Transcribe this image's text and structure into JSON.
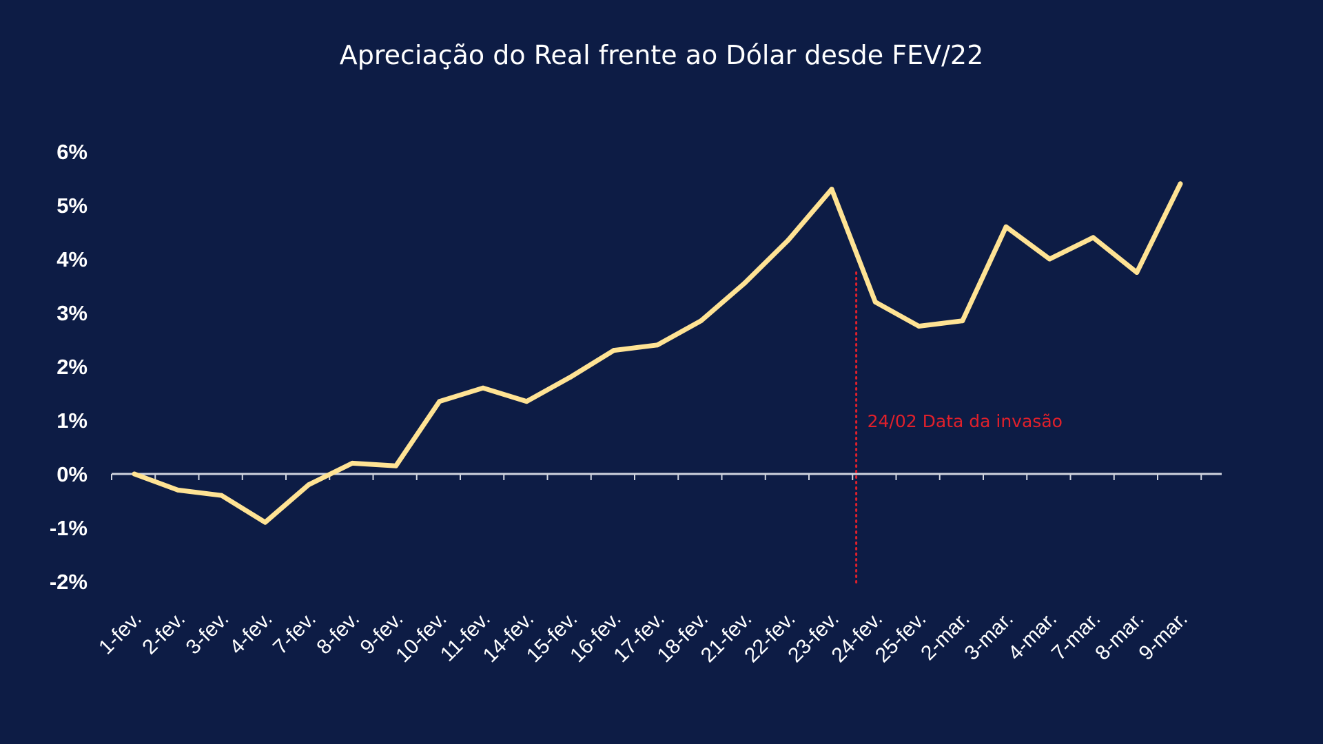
{
  "chart_data": {
    "type": "line",
    "title": "Apreciação do Real frente ao Dólar desde FEV/22",
    "categories": [
      "1-fev.",
      "2-fev.",
      "3-fev.",
      "4-fev.",
      "7-fev.",
      "8-fev.",
      "9-fev.",
      "10-fev.",
      "11-fev.",
      "14-fev.",
      "15-fev.",
      "16-fev.",
      "17-fev.",
      "18-fev.",
      "21-fev.",
      "22-fev.",
      "23-fev.",
      "24-fev.",
      "25-fev.",
      "2-mar.",
      "3-mar.",
      "4-mar.",
      "7-mar.",
      "8-mar.",
      "9-mar."
    ],
    "series": [
      {
        "values": [
          0.0,
          -0.3,
          -0.4,
          -0.9,
          -0.2,
          0.2,
          0.15,
          1.35,
          1.6,
          1.35,
          1.8,
          2.3,
          2.4,
          2.85,
          3.55,
          4.35,
          5.3,
          3.2,
          2.75,
          2.85,
          4.6,
          4.0,
          4.4,
          3.75,
          5.4
        ],
        "color": "#ffe394"
      }
    ],
    "y_ticks": [
      "6%",
      "5%",
      "4%",
      "3%",
      "2%",
      "1%",
      "0%",
      "-1%",
      "-2%"
    ],
    "ylim": [
      -2,
      6
    ],
    "grid": false,
    "annotation": {
      "text": "24/02 Data da invasão",
      "at_between": [
        "23-fev.",
        "24-fev."
      ],
      "color": "#e0202b"
    },
    "colors": {
      "background": "#0d1c45",
      "axis": "#d0d4de",
      "text": "#ffffff"
    }
  }
}
